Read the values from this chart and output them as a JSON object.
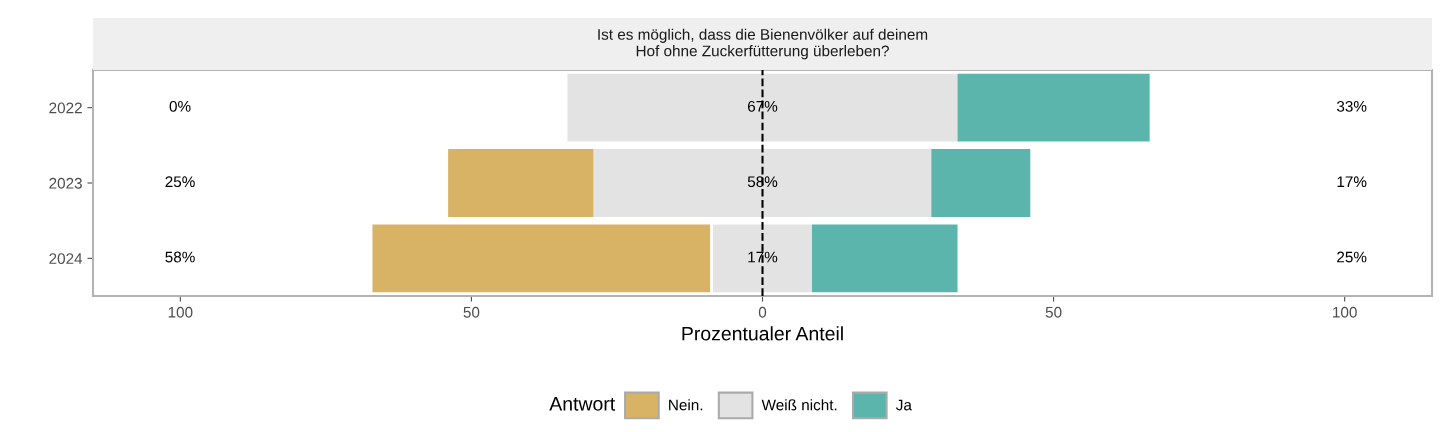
{
  "chart_data": {
    "type": "bar",
    "orientation": "horizontal",
    "title": "Ist es möglich, dass die Bienenvölker auf deinem\nHof ohne Zuckerfütterung überleben?",
    "xlabel": "Prozentualer Anteil",
    "legend_title": "Antwort",
    "legend": "bottom",
    "grid": false,
    "categories": [
      "2022",
      "2023",
      "2024"
    ],
    "series": [
      {
        "name": "Nein.",
        "color": "#d9b365",
        "values": [
          0,
          25,
          58
        ],
        "base": [
          null,
          -54,
          -67
        ],
        "value_labels": [
          "0%",
          "25%",
          "58%"
        ]
      },
      {
        "name": "Weiß nicht.",
        "color": "#e3e3e3",
        "values": [
          67,
          58,
          17
        ],
        "base": [
          -33.5,
          -29,
          -8.5
        ],
        "value_labels": [
          "67%",
          "58%",
          "17%"
        ]
      },
      {
        "name": "Ja",
        "color": "#5bb5ad",
        "values": [
          33,
          17,
          25
        ],
        "base": [
          33.5,
          29,
          8.5
        ],
        "value_labels": [
          "33%",
          "17%",
          "25%"
        ]
      }
    ],
    "xlim": [
      -115,
      115
    ],
    "xticks": [
      {
        "value": -100,
        "label": "100"
      },
      {
        "value": -50,
        "label": "50"
      },
      0,
      50,
      {
        "value": 100,
        "label": "100"
      }
    ],
    "ref_lines": [
      {
        "axis": "x",
        "value": 0,
        "color": "#000000",
        "line_style": "dashed"
      }
    ]
  }
}
